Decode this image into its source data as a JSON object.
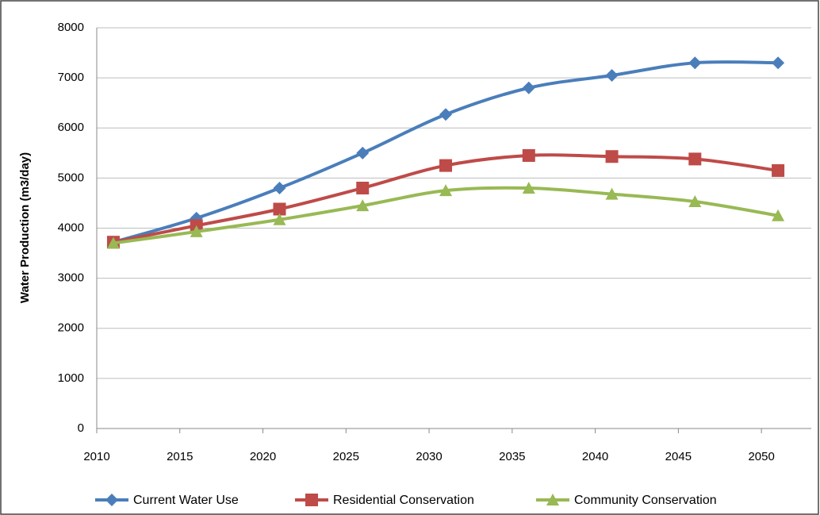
{
  "chart_data": {
    "type": "line",
    "y_label": "Water Production (m3/day)",
    "x": [
      2011,
      2016,
      2021,
      2026,
      2031,
      2036,
      2041,
      2046,
      2051
    ],
    "xlim": [
      2010,
      2053
    ],
    "xticks": [
      2010,
      2015,
      2020,
      2025,
      2030,
      2035,
      2040,
      2045,
      2050
    ],
    "ylim": [
      0,
      8000
    ],
    "yticks": [
      0,
      1000,
      2000,
      3000,
      4000,
      5000,
      6000,
      7000,
      8000
    ],
    "grid": true,
    "smooth": true,
    "legend": "bottom",
    "series": [
      {
        "name": "Current Water Use",
        "color": "#4a7ebb",
        "marker": "diamond",
        "values": [
          3720,
          4200,
          4800,
          5500,
          6270,
          6800,
          7050,
          7300,
          7300
        ]
      },
      {
        "name": "Residential Conservation",
        "color": "#be4b48",
        "marker": "square",
        "values": [
          3720,
          4050,
          4380,
          4800,
          5250,
          5450,
          5430,
          5380,
          5150
        ]
      },
      {
        "name": "Community Conservation",
        "color": "#98b954",
        "marker": "triangle",
        "values": [
          3700,
          3930,
          4170,
          4450,
          4750,
          4800,
          4680,
          4530,
          4250
        ]
      }
    ]
  }
}
